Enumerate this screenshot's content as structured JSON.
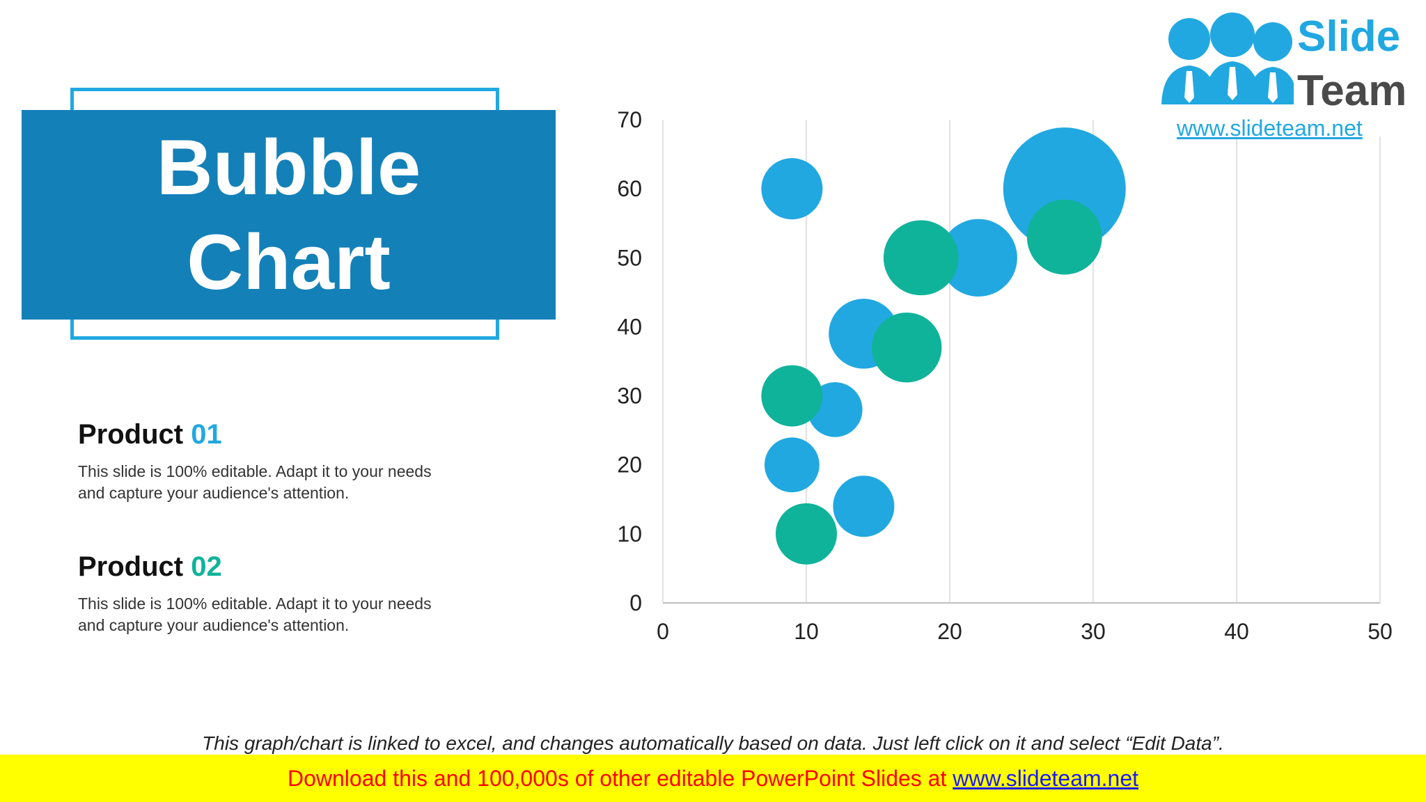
{
  "slide": {
    "title_line1": "Bubble",
    "title_line2": "Chart",
    "products": [
      {
        "label": "Product",
        "number": "01",
        "number_color": "#21a8e1",
        "description": "This slide is 100% editable. Adapt it to your needs\nand capture your audience's attention."
      },
      {
        "label": "Product",
        "number": "02",
        "number_color": "#0fb39a",
        "description": "This slide is 100% editable. Adapt it to your needs\nand capture your audience's attention."
      }
    ],
    "footer_note": "This graph/chart is linked to excel, and changes automatically based on data. Just left click on it and select “Edit Data”.",
    "banner_text": "Download this and 100,000s of other editable PowerPoint Slides at ",
    "banner_link": "www.slideteam.net"
  },
  "logo": {
    "word1": "Slide",
    "word2": "Team",
    "url": "www.slideteam.net"
  },
  "colors": {
    "accent_blue": "#21a8e1",
    "accent_teal": "#0fb39a",
    "title_box": "#1480b8"
  },
  "chart_data": {
    "type": "bubble",
    "xlim": [
      0,
      50
    ],
    "ylim": [
      0,
      70
    ],
    "x_ticks": [
      0,
      10,
      20,
      30,
      40,
      50
    ],
    "y_ticks": [
      0,
      10,
      20,
      30,
      40,
      50,
      60,
      70
    ],
    "grid": "vertical",
    "series": [
      {
        "color": "#21a8e1",
        "points": [
          {
            "x": 9,
            "y": 60,
            "size": 5
          },
          {
            "x": 28,
            "y": 60,
            "size": 20
          },
          {
            "x": 22,
            "y": 50,
            "size": 8
          },
          {
            "x": 14,
            "y": 39,
            "size": 6.5
          },
          {
            "x": 12,
            "y": 28,
            "size": 4
          },
          {
            "x": 9,
            "y": 20,
            "size": 4
          },
          {
            "x": 14,
            "y": 14,
            "size": 5
          }
        ]
      },
      {
        "color": "#0fb39a",
        "points": [
          {
            "x": 18,
            "y": 50,
            "size": 7.5
          },
          {
            "x": 28,
            "y": 53,
            "size": 7.5
          },
          {
            "x": 17,
            "y": 37,
            "size": 6.5
          },
          {
            "x": 9,
            "y": 30,
            "size": 5
          },
          {
            "x": 10,
            "y": 10,
            "size": 5
          }
        ]
      }
    ]
  }
}
